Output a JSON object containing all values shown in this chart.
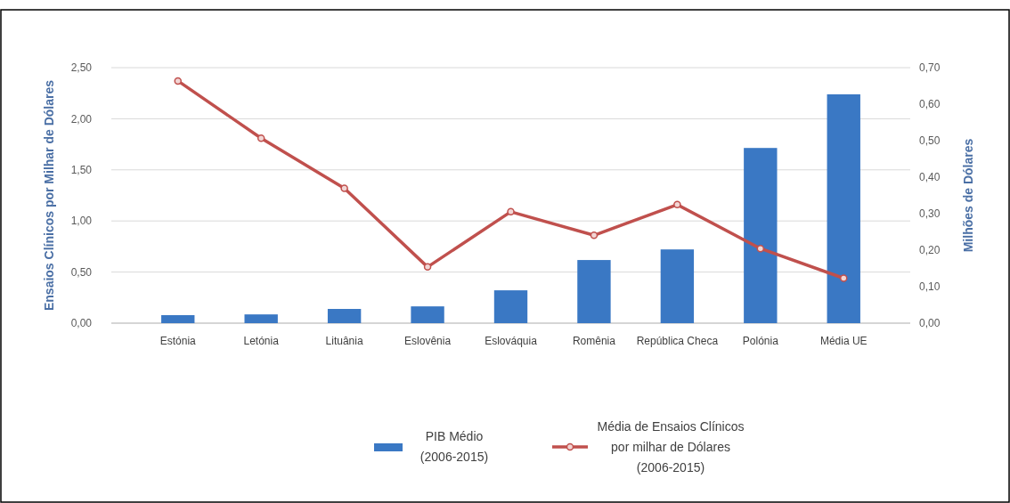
{
  "chart_data": {
    "type": "bar",
    "categories": [
      "Estónia",
      "Letónia",
      "Lituânia",
      "Eslovênia",
      "Eslováquia",
      "Romênia",
      "República Checa",
      "Polónia",
      "Média UE"
    ],
    "ylabel": "Ensaios Clínicos por Milhar de Dólares",
    "y2label": "Milhões de Dólares",
    "ylim": [
      0,
      2.5
    ],
    "yticks": [
      {
        "value": 0,
        "label": "0,00"
      },
      {
        "value": 0.5,
        "label": "0,50"
      },
      {
        "value": 1,
        "label": "1,00"
      },
      {
        "value": 1.5,
        "label": "1,50"
      },
      {
        "value": 2,
        "label": "2,00"
      },
      {
        "value": 2.5,
        "label": "2,50"
      }
    ],
    "y2lim": [
      0,
      0.7
    ],
    "y2ticks": [
      {
        "value": 0,
        "label": "0,00"
      },
      {
        "value": 0.1,
        "label": "0,10"
      },
      {
        "value": 0.2,
        "label": "0,20"
      },
      {
        "value": 0.3,
        "label": "0,30"
      },
      {
        "value": 0.4,
        "label": "0,40"
      },
      {
        "value": 0.5,
        "label": "0,50"
      },
      {
        "value": 0.6,
        "label": "0,60"
      },
      {
        "value": 0.7,
        "label": "0,70"
      }
    ],
    "grid": "y",
    "legend": "bottom",
    "marker": "circle",
    "series": [
      {
        "name": "PIB Médio\n(2006-2015)",
        "axis": "y2",
        "color": "#3a78c4",
        "values": [
          0.022,
          0.024,
          0.039,
          0.046,
          0.09,
          0.173,
          0.202,
          0.48,
          0.627
        ]
      },
      {
        "name": "Média de Ensaios Clínicos\npor milhar de Dólares\n(2006-2015)",
        "type": "line",
        "color": "#c0504d",
        "values": [
          2.37,
          1.81,
          1.32,
          0.55,
          1.09,
          0.86,
          1.16,
          0.73,
          0.44
        ]
      }
    ]
  }
}
